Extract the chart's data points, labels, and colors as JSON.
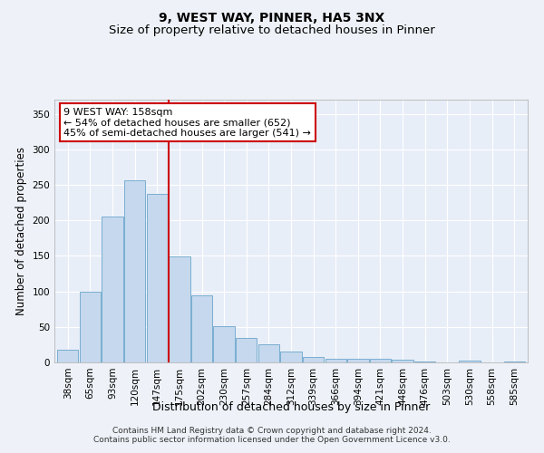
{
  "title": "9, WEST WAY, PINNER, HA5 3NX",
  "subtitle": "Size of property relative to detached houses in Pinner",
  "xlabel": "Distribution of detached houses by size in Pinner",
  "ylabel": "Number of detached properties",
  "footer_line1": "Contains HM Land Registry data © Crown copyright and database right 2024.",
  "footer_line2": "Contains public sector information licensed under the Open Government Licence v3.0.",
  "categories": [
    "38sqm",
    "65sqm",
    "93sqm",
    "120sqm",
    "147sqm",
    "175sqm",
    "202sqm",
    "230sqm",
    "257sqm",
    "284sqm",
    "312sqm",
    "339sqm",
    "366sqm",
    "394sqm",
    "421sqm",
    "448sqm",
    "476sqm",
    "503sqm",
    "530sqm",
    "558sqm",
    "585sqm"
  ],
  "values": [
    18,
    100,
    205,
    257,
    237,
    149,
    95,
    51,
    34,
    26,
    15,
    8,
    5,
    5,
    5,
    4,
    1,
    0,
    2,
    0,
    1
  ],
  "bar_color": "#c5d8ed",
  "bar_edge_color": "#7aaed0",
  "vline_x": 4.5,
  "vline_color": "#cc0000",
  "annotation_line1": "9 WEST WAY: 158sqm",
  "annotation_line2": "← 54% of detached houses are smaller (652)",
  "annotation_line3": "45% of semi-detached houses are larger (541) →",
  "annotation_box_color": "#ffffff",
  "annotation_box_edge_color": "#cc0000",
  "ylim": [
    0,
    370
  ],
  "yticks": [
    0,
    50,
    100,
    150,
    200,
    250,
    300,
    350
  ],
  "background_color": "#eef2f8",
  "plot_background_color": "#e8eef8",
  "grid_color": "#ffffff",
  "title_fontsize": 10,
  "subtitle_fontsize": 9.5,
  "xlabel_fontsize": 9,
  "ylabel_fontsize": 8.5,
  "tick_fontsize": 7.5,
  "annotation_fontsize": 8,
  "footer_fontsize": 6.5
}
